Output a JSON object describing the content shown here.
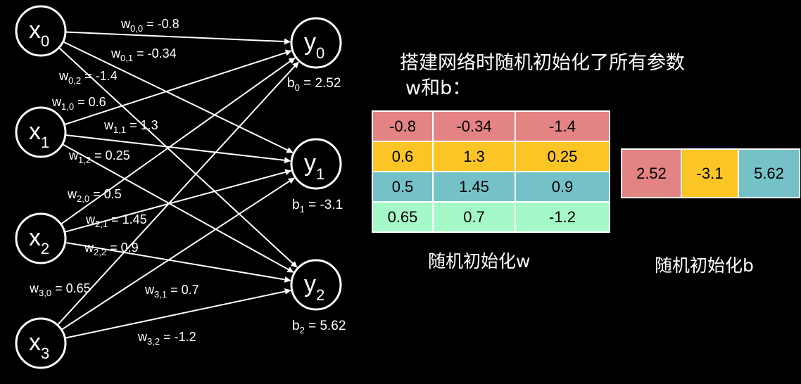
{
  "title_line1": "搭建网络时随机初始化了所有参数",
  "title_line2": "w和b：",
  "w_caption": "随机初始化w",
  "b_caption": "随机初始化b",
  "inputs": [
    {
      "base": "x",
      "sub": "0"
    },
    {
      "base": "x",
      "sub": "1"
    },
    {
      "base": "x",
      "sub": "2"
    },
    {
      "base": "x",
      "sub": "3"
    }
  ],
  "outputs": [
    {
      "base": "y",
      "sub": "0",
      "bias_sub": "0",
      "bias": "2.52"
    },
    {
      "base": "y",
      "sub": "1",
      "bias_sub": "1",
      "bias": "-3.1"
    },
    {
      "base": "y",
      "sub": "2",
      "bias_sub": "2",
      "bias": "5.62"
    }
  ],
  "weights": [
    {
      "i": 0,
      "j": 0,
      "sub": "0,0",
      "value": "-0.8"
    },
    {
      "i": 0,
      "j": 1,
      "sub": "0,1",
      "value": "-0.34"
    },
    {
      "i": 0,
      "j": 2,
      "sub": "0,2",
      "value": "-1.4"
    },
    {
      "i": 1,
      "j": 0,
      "sub": "1,0",
      "value": "0.6"
    },
    {
      "i": 1,
      "j": 1,
      "sub": "1,1",
      "value": "1.3"
    },
    {
      "i": 1,
      "j": 2,
      "sub": "1,2",
      "value": "0.25"
    },
    {
      "i": 2,
      "j": 0,
      "sub": "2,0",
      "value": "0.5"
    },
    {
      "i": 2,
      "j": 1,
      "sub": "2,1",
      "value": "1.45"
    },
    {
      "i": 2,
      "j": 2,
      "sub": "2,2",
      "value": "0.9"
    },
    {
      "i": 3,
      "j": 0,
      "sub": "3,0",
      "value": "0.65"
    },
    {
      "i": 3,
      "j": 1,
      "sub": "3,1",
      "value": "0.7"
    },
    {
      "i": 3,
      "j": 2,
      "sub": "3,2",
      "value": "-1.2"
    }
  ],
  "w_table": [
    [
      "-0.8",
      "-0.34",
      "-1.4"
    ],
    [
      "0.6",
      "1.3",
      "0.25"
    ],
    [
      "0.5",
      "1.45",
      "0.9"
    ],
    [
      "0.65",
      "0.7",
      "-1.2"
    ]
  ],
  "w_row_colors": [
    "#e38383",
    "#fcc526",
    "#74c1c8",
    "#a5f9c9"
  ],
  "b_table": [
    "2.52",
    "-3.1",
    "5.62"
  ],
  "b_colors": [
    "#e38383",
    "#fcc526",
    "#74c1c8"
  ]
}
